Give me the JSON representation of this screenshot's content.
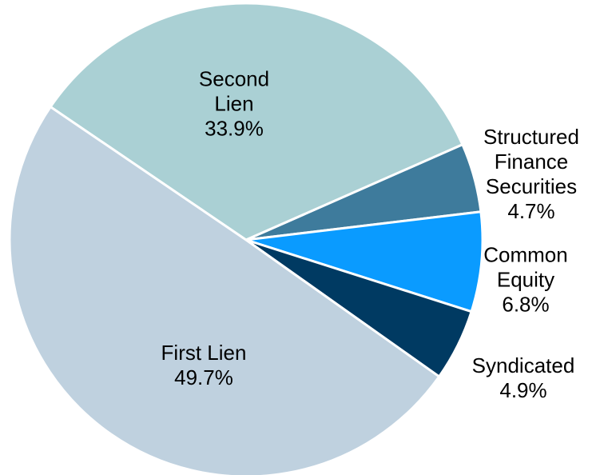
{
  "chart_data": {
    "type": "pie",
    "categories": [
      "Second Lien",
      "Structured Finance Securities",
      "Common Equity",
      "Syndicated",
      "First Lien"
    ],
    "values": [
      33.9,
      4.7,
      6.8,
      4.9,
      49.7
    ],
    "value_labels": [
      "33.9%",
      "4.7%",
      "6.8%",
      "4.9%",
      "49.7%"
    ],
    "colors": [
      "#aad0d4",
      "#3e7b9c",
      "#0a9bff",
      "#003a62",
      "#bfd1df"
    ]
  }
}
